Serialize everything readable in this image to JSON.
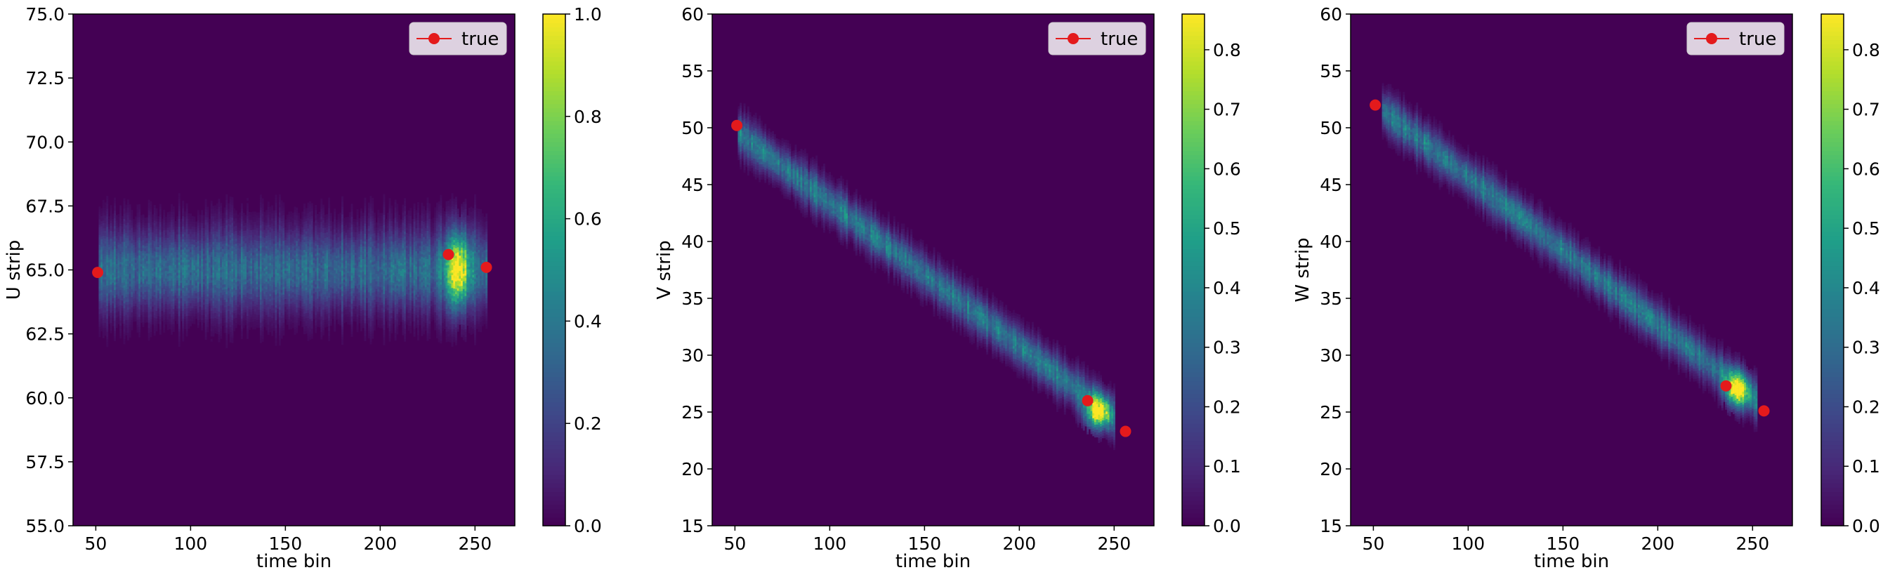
{
  "colors": {
    "background": "#440154",
    "marker": "#e41a1c",
    "viridis": [
      "#440154",
      "#482878",
      "#3e4989",
      "#31688e",
      "#26828e",
      "#1f9e89",
      "#35b779",
      "#6ece58",
      "#b5de2b",
      "#fde725"
    ]
  },
  "chart_data": [
    {
      "type": "heatmap",
      "xlabel": "time bin",
      "ylabel": "U strip",
      "xlim": [
        38,
        271
      ],
      "ylim": [
        55.0,
        75.0
      ],
      "xticks": [
        "50",
        "100",
        "150",
        "200",
        "250"
      ],
      "xtick_values": [
        50,
        100,
        150,
        200,
        250
      ],
      "yticks": [
        "55.0",
        "57.5",
        "60.0",
        "62.5",
        "65.0",
        "67.5",
        "70.0",
        "72.5",
        "75.0"
      ],
      "ytick_values": [
        55.0,
        57.5,
        60.0,
        62.5,
        65.0,
        67.5,
        70.0,
        72.5,
        75.0
      ],
      "colorbar": {
        "min": 0.0,
        "max": 1.0,
        "ticks": [
          "0.0",
          "0.2",
          "0.4",
          "0.6",
          "0.8",
          "1.0"
        ],
        "tick_values": [
          0.0,
          0.2,
          0.4,
          0.6,
          0.8,
          1.0
        ]
      },
      "legend": {
        "label": "true",
        "position": "upper-right"
      },
      "track": {
        "x_start": 52,
        "x_end": 256,
        "y_start": 65.0,
        "y_end": 65.0,
        "half_width": 1.5,
        "base_intensity": 0.35,
        "hotspot": {
          "x": 241,
          "y": 65.0,
          "intensity": 1.0
        }
      },
      "true_points": [
        {
          "x": 51,
          "y": 64.9
        },
        {
          "x": 236,
          "y": 65.6
        },
        {
          "x": 256,
          "y": 65.1
        }
      ]
    },
    {
      "type": "heatmap",
      "xlabel": "time bin",
      "ylabel": "V strip",
      "xlim": [
        38,
        271
      ],
      "ylim": [
        15,
        60
      ],
      "xticks": [
        "50",
        "100",
        "150",
        "200",
        "250"
      ],
      "xtick_values": [
        50,
        100,
        150,
        200,
        250
      ],
      "yticks": [
        "15",
        "20",
        "25",
        "30",
        "35",
        "40",
        "45",
        "50",
        "55",
        "60"
      ],
      "ytick_values": [
        15,
        20,
        25,
        30,
        35,
        40,
        45,
        50,
        55,
        60
      ],
      "colorbar": {
        "min": 0.0,
        "max": 0.86,
        "ticks": [
          "0.0",
          "0.1",
          "0.2",
          "0.3",
          "0.4",
          "0.5",
          "0.6",
          "0.7",
          "0.8"
        ],
        "tick_values": [
          0.0,
          0.1,
          0.2,
          0.3,
          0.4,
          0.5,
          0.6,
          0.7,
          0.8
        ]
      },
      "legend": {
        "label": "true",
        "position": "upper-right"
      },
      "track": {
        "x_start": 52,
        "x_end": 250,
        "y_start": 49.5,
        "y_end": 24.5,
        "half_width": 1.6,
        "base_intensity": 0.35,
        "hotspot": {
          "x": 241,
          "y": 25.0,
          "intensity": 0.86
        }
      },
      "true_points": [
        {
          "x": 51,
          "y": 50.2
        },
        {
          "x": 236,
          "y": 26.0
        },
        {
          "x": 256,
          "y": 23.3
        }
      ]
    },
    {
      "type": "heatmap",
      "xlabel": "time bin",
      "ylabel": "W strip",
      "xlim": [
        38,
        271
      ],
      "ylim": [
        15,
        60
      ],
      "xticks": [
        "50",
        "100",
        "150",
        "200",
        "250"
      ],
      "xtick_values": [
        50,
        100,
        150,
        200,
        250
      ],
      "yticks": [
        "15",
        "20",
        "25",
        "30",
        "35",
        "40",
        "45",
        "50",
        "55",
        "60"
      ],
      "ytick_values": [
        15,
        20,
        25,
        30,
        35,
        40,
        45,
        50,
        55,
        60
      ],
      "colorbar": {
        "min": 0.0,
        "max": 0.86,
        "ticks": [
          "0.0",
          "0.1",
          "0.2",
          "0.3",
          "0.4",
          "0.5",
          "0.6",
          "0.7",
          "0.8"
        ],
        "tick_values": [
          0.0,
          0.1,
          0.2,
          0.3,
          0.4,
          0.5,
          0.6,
          0.7,
          0.8
        ]
      },
      "legend": {
        "label": "true",
        "position": "upper-right"
      },
      "track": {
        "x_start": 55,
        "x_end": 252,
        "y_start": 51.5,
        "y_end": 26.0,
        "half_width": 1.6,
        "base_intensity": 0.35,
        "hotspot": {
          "x": 242,
          "y": 27.0,
          "intensity": 0.86
        }
      },
      "true_points": [
        {
          "x": 51,
          "y": 52.0
        },
        {
          "x": 236,
          "y": 27.3
        },
        {
          "x": 256,
          "y": 25.1
        }
      ]
    }
  ]
}
